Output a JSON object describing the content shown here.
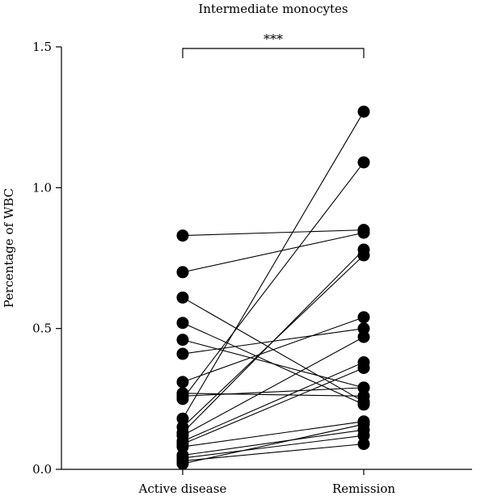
{
  "chart_data": {
    "type": "scatter",
    "subtype": "paired",
    "title": "Intermediate monocytes",
    "xlabel": "",
    "ylabel": "Percentage of WBC",
    "categories": [
      "Active disease",
      "Remission"
    ],
    "ylim": [
      0,
      1.5
    ],
    "yticks": [
      "0.0",
      "0.5",
      "1.0",
      "1.5"
    ],
    "grid": false,
    "significance": {
      "label": "***",
      "between": [
        "Active disease",
        "Remission"
      ]
    },
    "pairs": [
      [
        0.83,
        0.85
      ],
      [
        0.7,
        0.84
      ],
      [
        0.61,
        0.24
      ],
      [
        0.52,
        0.23
      ],
      [
        0.46,
        0.29
      ],
      [
        0.41,
        0.5
      ],
      [
        0.31,
        0.54
      ],
      [
        0.27,
        0.26
      ],
      [
        0.26,
        0.29
      ],
      [
        0.25,
        1.09
      ],
      [
        0.18,
        1.27
      ],
      [
        0.15,
        0.76
      ],
      [
        0.13,
        0.78
      ],
      [
        0.12,
        0.47
      ],
      [
        0.1,
        0.38
      ],
      [
        0.09,
        0.36
      ],
      [
        0.08,
        0.17
      ],
      [
        0.05,
        0.14
      ],
      [
        0.04,
        0.12
      ],
      [
        0.03,
        0.09
      ],
      [
        0.02,
        0.16
      ]
    ]
  }
}
